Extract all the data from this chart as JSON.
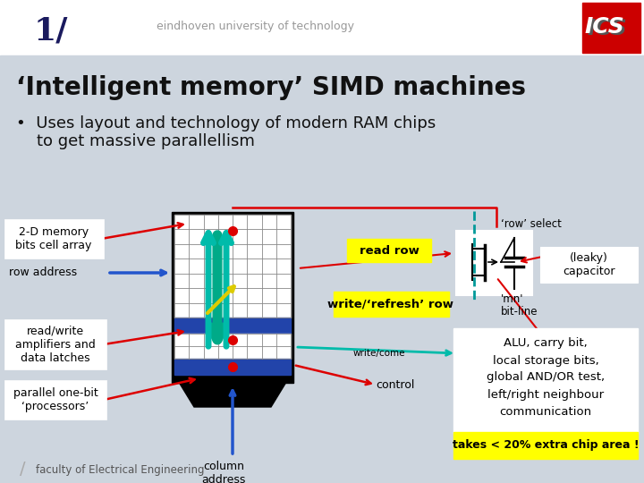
{
  "bg_top": "#ffffff",
  "bg_main": "#cdd5de",
  "slide_number": "1/",
  "slide_number_color": "#1a1a5e",
  "header_text": "eindhoven university of technology",
  "header_text_color": "#999999",
  "title": "‘Intelligent memory’ SIMD machines",
  "title_color": "#111111",
  "bullet_line1": "•  Uses layout and technology of modern RAM chips",
  "bullet_line2": "    to get massive parallellism",
  "bullet_color": "#111111",
  "label_2d": "2-D memory\nbits cell array",
  "label_row": "row address",
  "label_rw": "read/write\namplifiers and\ndata latches",
  "label_parallel": "parallel one-bit\n‘processors’",
  "label_readrow": "read row",
  "label_writerow": "write/‘refresh’ row",
  "label_rowselect": "‘row’ select",
  "label_leaky": "(leaky)\ncapacitor",
  "label_mn": "'mn'",
  "label_bitline": "bit-line",
  "label_writecome": "write/come",
  "label_control": "control",
  "label_column": "column\naddress",
  "label_alu": "ALU, carry bit,\nlocal storage bits,\nglobal AND/OR test,\nleft/right neighbour\ncommunication",
  "label_takes": "takes < 20% extra chip area !",
  "label_faculty": "faculty of Electrical Engineering",
  "footer_slash": "/",
  "yellow_bg": "#ffff00",
  "chip_dark": "#111133",
  "chip_blue": "#2244aa",
  "grid_line": "#888888",
  "red": "#dd0000",
  "blue_arrow": "#2255cc",
  "teal_arrow": "#00bbaa",
  "teal_line": "#009999"
}
